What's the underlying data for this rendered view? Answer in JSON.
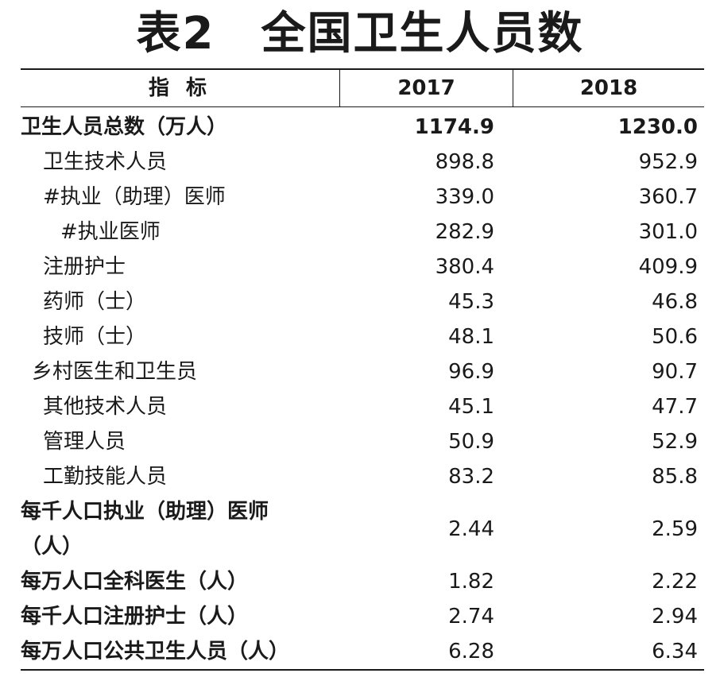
{
  "title": "表2　全国卫生人员数",
  "header": {
    "indicator": "指 标",
    "col_2017": "2017",
    "col_2018": "2018"
  },
  "rows": [
    {
      "label": "卫生人员总数（万人）",
      "v2017": "1174.9",
      "v2018": "1230.0"
    },
    {
      "label": "卫生技术人员",
      "v2017": "898.8",
      "v2018": "952.9"
    },
    {
      "label": "#执业（助理）医师",
      "v2017": "339.0",
      "v2018": "360.7"
    },
    {
      "label": "#执业医师",
      "v2017": "282.9",
      "v2018": "301.0"
    },
    {
      "label": "注册护士",
      "v2017": "380.4",
      "v2018": "409.9"
    },
    {
      "label": "药师（士）",
      "v2017": "45.3",
      "v2018": "46.8"
    },
    {
      "label": "技师（士）",
      "v2017": "48.1",
      "v2018": "50.6"
    },
    {
      "label": "乡村医生和卫生员",
      "v2017": "96.9",
      "v2018": "90.7"
    },
    {
      "label": "其他技术人员",
      "v2017": "45.1",
      "v2018": "47.7"
    },
    {
      "label": "管理人员",
      "v2017": "50.9",
      "v2018": "52.9"
    },
    {
      "label": "工勤技能人员",
      "v2017": "83.2",
      "v2018": "85.8"
    },
    {
      "label": "每千人口执业（助理）医师（人）",
      "v2017": "2.44",
      "v2018": "2.59"
    },
    {
      "label": "每万人口全科医生（人）",
      "v2017": "1.82",
      "v2018": "2.22"
    },
    {
      "label": "每千人口注册护士（人）",
      "v2017": "2.74",
      "v2018": "2.94"
    },
    {
      "label": "每万人口公共卫生人员（人）",
      "v2017": "6.28",
      "v2018": "6.34"
    }
  ]
}
